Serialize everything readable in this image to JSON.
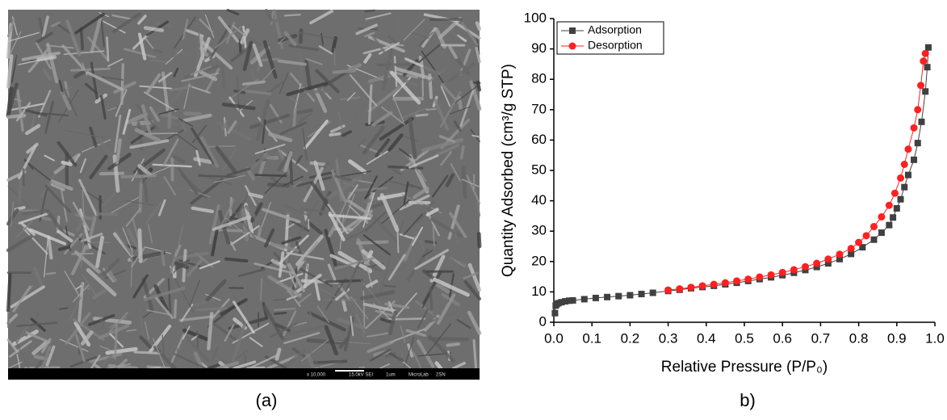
{
  "image_panel": {
    "caption": "(a)",
    "scale_bar_texts": [
      "x 10,000",
      "15.0kV SEI",
      "1um",
      "MicroLab",
      "2SN"
    ]
  },
  "chart_data": {
    "type": "line",
    "caption": "b)",
    "x_label": "Relative Pressure (P/P₀)",
    "y_label": "Quantity Adsorbed (cm³/g STP)",
    "xlim": [
      0,
      1.0
    ],
    "ylim": [
      0,
      100
    ],
    "xticks": [
      {
        "value": 0,
        "label": "0.0"
      },
      0.1,
      0.2,
      0.3,
      0.4,
      0.5,
      0.6,
      0.7,
      0.8,
      0.9,
      {
        "value": 1,
        "label": "1.0"
      }
    ],
    "yticks": [
      0,
      10,
      20,
      30,
      40,
      50,
      60,
      70,
      80,
      90,
      100
    ],
    "legend": "upper-left",
    "series": [
      {
        "name": "Adsorption",
        "color": "#404040",
        "marker": "square",
        "x": [
          0.003,
          0.005,
          0.008,
          0.012,
          0.02,
          0.03,
          0.04,
          0.05,
          0.08,
          0.11,
          0.14,
          0.17,
          0.2,
          0.23,
          0.26,
          0.3,
          0.33,
          0.36,
          0.39,
          0.42,
          0.45,
          0.48,
          0.51,
          0.54,
          0.57,
          0.6,
          0.63,
          0.66,
          0.69,
          0.72,
          0.75,
          0.78,
          0.81,
          0.84,
          0.86,
          0.88,
          0.89,
          0.9,
          0.91,
          0.92,
          0.93,
          0.945,
          0.955,
          0.965,
          0.975,
          0.98,
          0.983
        ],
        "values": [
          3,
          5.5,
          6,
          6.3,
          6.6,
          6.9,
          7.1,
          7.2,
          7.6,
          8.0,
          8.3,
          8.6,
          8.9,
          9.3,
          9.7,
          10.3,
          10.7,
          11.2,
          11.6,
          12.0,
          12.5,
          13.0,
          13.6,
          14.2,
          14.8,
          15.5,
          16.3,
          17.2,
          18.2,
          19.4,
          20.8,
          22.5,
          24.7,
          27.2,
          29.5,
          32,
          34.5,
          37.5,
          40.5,
          44.5,
          48.5,
          53.5,
          59,
          66,
          76,
          84,
          90.5
        ]
      },
      {
        "name": "Desorption",
        "color": "#ff2020",
        "marker": "circle",
        "x": [
          0.3,
          0.33,
          0.36,
          0.39,
          0.42,
          0.45,
          0.48,
          0.51,
          0.54,
          0.57,
          0.6,
          0.63,
          0.66,
          0.69,
          0.72,
          0.75,
          0.78,
          0.8,
          0.82,
          0.84,
          0.86,
          0.88,
          0.895,
          0.91,
          0.92,
          0.93,
          0.945,
          0.955,
          0.963,
          0.97,
          0.975
        ],
        "values": [
          10.6,
          11.0,
          11.5,
          12.0,
          12.5,
          13.0,
          13.6,
          14.2,
          14.9,
          15.6,
          16.4,
          17.3,
          18.3,
          19.4,
          20.8,
          22.4,
          24.3,
          26.3,
          28.5,
          31.5,
          34.7,
          38.5,
          42.5,
          47.5,
          52,
          57,
          64,
          70,
          78,
          86,
          88.5
        ]
      }
    ]
  }
}
